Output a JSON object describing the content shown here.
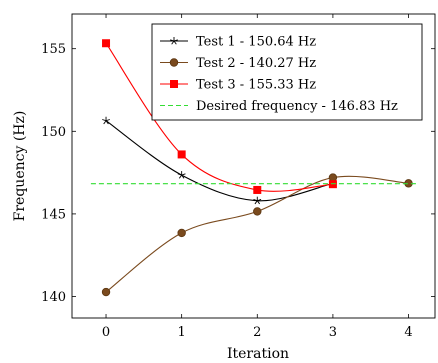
{
  "chart_data": {
    "type": "line",
    "title": "",
    "xlabel": "Iteration",
    "ylabel": "Frequency (Hz)",
    "xlim": [
      -0.45,
      4.35
    ],
    "ylim": [
      138.7,
      157.1
    ],
    "x_ticks": [
      0,
      1,
      2,
      3,
      4
    ],
    "y_ticks": [
      140,
      145,
      150,
      155
    ],
    "grid": false,
    "legend_position": "top-right",
    "series": [
      {
        "name": "Test 1 - 150.64 Hz",
        "color": "#000000",
        "marker": "star",
        "x": [
          0,
          1,
          2,
          3
        ],
        "y": [
          150.64,
          147.35,
          145.8,
          146.85
        ]
      },
      {
        "name": "Test 2 - 140.27 Hz",
        "color": "#7a4a1e",
        "marker": "circle",
        "x": [
          0,
          1,
          2,
          3,
          4
        ],
        "y": [
          140.27,
          143.85,
          145.15,
          147.2,
          146.85
        ]
      },
      {
        "name": "Test 3 - 155.33 Hz",
        "color": "#ff0000",
        "marker": "square",
        "x": [
          0,
          1,
          2,
          3
        ],
        "y": [
          155.33,
          148.6,
          146.45,
          146.8
        ]
      },
      {
        "name": "Desired frequency - 146.83 Hz",
        "color": "#33dd33",
        "marker": "none",
        "dashed": true,
        "x": [
          -0.2,
          4.1
        ],
        "y": [
          146.83,
          146.83
        ]
      }
    ]
  }
}
